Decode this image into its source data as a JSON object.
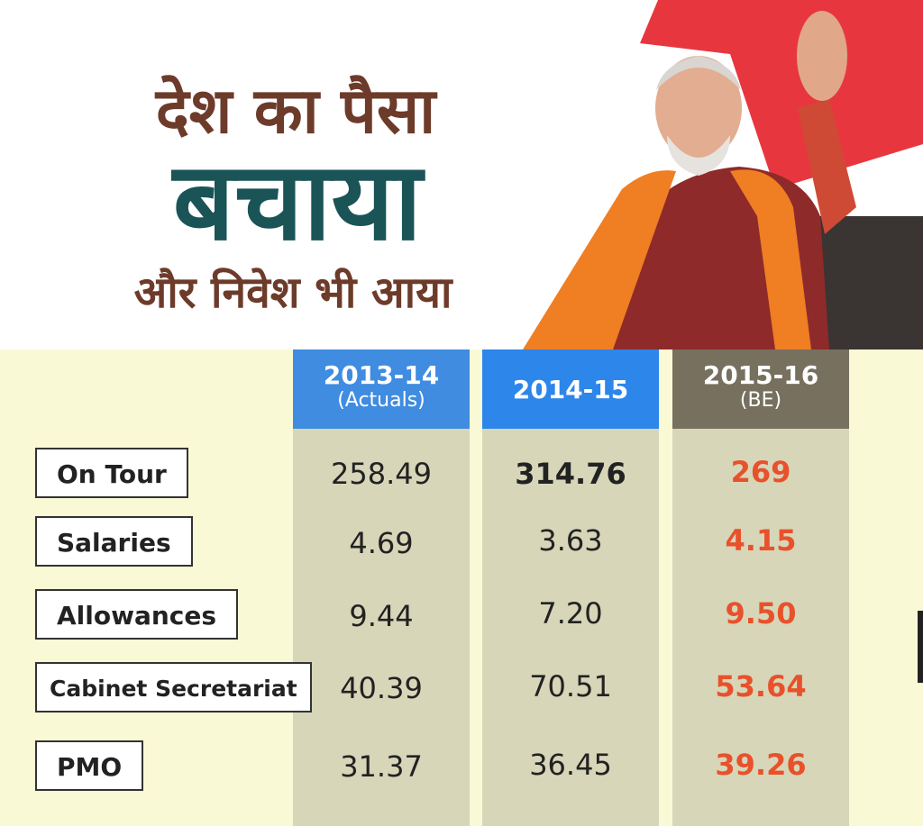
{
  "headline": {
    "line1": "देश का पैसा",
    "line2": "बचाया",
    "line3": "और निवेश भी आया"
  },
  "colors": {
    "heading_brown": "#6d3b2a",
    "heading_teal": "#1a5457",
    "highlight": "#e8512b",
    "panel_bg": "#faf9d5",
    "column_bg": "#d7d6b9"
  },
  "columns": [
    {
      "year": "2013-14",
      "note": "(Actuals)"
    },
    {
      "year": "2014-15",
      "note": ""
    },
    {
      "year": "2015-16",
      "note": "(BE)"
    }
  ],
  "rows": [
    {
      "label": "On Tour",
      "values": [
        "258.49",
        "314.76",
        "269"
      ]
    },
    {
      "label": "Salaries",
      "values": [
        "4.69",
        "3.63",
        "4.15"
      ]
    },
    {
      "label": "Allowances",
      "values": [
        "9.44",
        "7.20",
        "9.50"
      ]
    },
    {
      "label": "Cabinet Secretariat",
      "values": [
        "40.39",
        "70.51",
        "53.64"
      ]
    },
    {
      "label": "PMO",
      "values": [
        "31.37",
        "36.45",
        "39.26"
      ]
    }
  ]
}
